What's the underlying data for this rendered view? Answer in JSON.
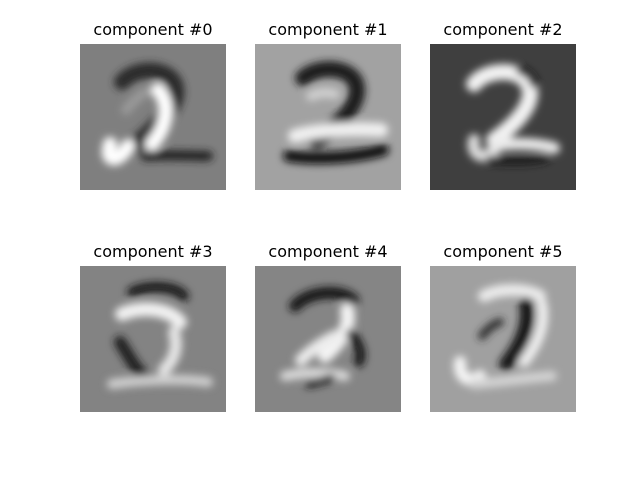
{
  "figure": {
    "panels": [
      {
        "title": "component #0",
        "bg": "#7f7f7f"
      },
      {
        "title": "component #1",
        "bg": "#a2a2a2"
      },
      {
        "title": "component #2",
        "bg": "#3f3f3f"
      },
      {
        "title": "component #3",
        "bg": "#838383"
      },
      {
        "title": "component #4",
        "bg": "#858585"
      },
      {
        "title": "component #5",
        "bg": "#a0a0a0"
      }
    ]
  }
}
